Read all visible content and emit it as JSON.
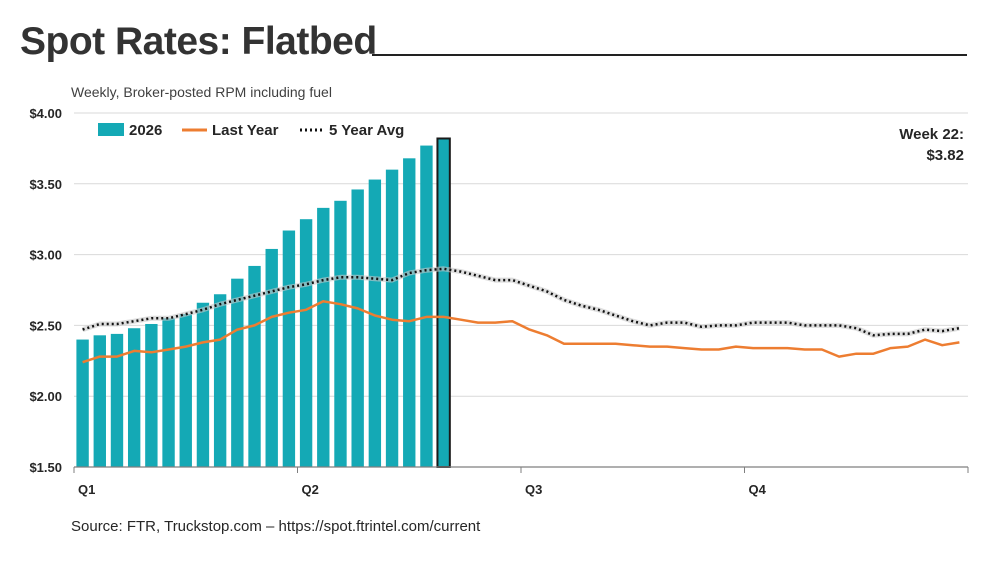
{
  "header": {
    "title": "Spot Rates: Flatbed",
    "subtitle": "Weekly, Broker-posted RPM including fuel"
  },
  "callout": {
    "line1": "Week 22:",
    "line2": "$3.82"
  },
  "footer": {
    "source": "Source: FTR, Truckstop.com – https://spot.ftrintel.com/current"
  },
  "colors": {
    "bars": "#14A9B5",
    "last_year": "#ED7D31",
    "avg": "#111111",
    "grid": "#D9D9D9"
  },
  "chart_data": {
    "type": "bar",
    "title": "Spot Rates: Flatbed",
    "subtitle": "Weekly, Broker-posted RPM including fuel",
    "ylim": [
      1.5,
      4.0
    ],
    "y_ticks": [
      "$1.50",
      "$2.00",
      "$2.50",
      "$3.00",
      "$3.50",
      "$4.00"
    ],
    "y_tick_values": [
      1.5,
      2.0,
      2.5,
      3.0,
      3.5,
      4.0
    ],
    "x_ticks": [
      "Q1",
      "Q2",
      "Q3",
      "Q4"
    ],
    "weeks_total": 52,
    "grid": "horizontal",
    "legend_position": "top-left",
    "highlight_week": 22,
    "series": [
      {
        "name": "2026",
        "type": "bar",
        "values": [
          2.4,
          2.43,
          2.44,
          2.48,
          2.51,
          2.55,
          2.58,
          2.66,
          2.72,
          2.83,
          2.92,
          3.04,
          3.17,
          3.25,
          3.33,
          3.38,
          3.46,
          3.53,
          3.6,
          3.68,
          3.77,
          3.82
        ]
      },
      {
        "name": "Last Year",
        "type": "line",
        "values": [
          2.24,
          2.28,
          2.28,
          2.32,
          2.31,
          2.33,
          2.35,
          2.38,
          2.4,
          2.47,
          2.5,
          2.56,
          2.59,
          2.61,
          2.67,
          2.65,
          2.62,
          2.57,
          2.54,
          2.53,
          2.56,
          2.56,
          2.54,
          2.52,
          2.52,
          2.53,
          2.47,
          2.43,
          2.37,
          2.37,
          2.37,
          2.37,
          2.36,
          2.35,
          2.35,
          2.34,
          2.33,
          2.33,
          2.35,
          2.34,
          2.34,
          2.34,
          2.33,
          2.33,
          2.28,
          2.3,
          2.3,
          2.34,
          2.35,
          2.4,
          2.36,
          2.38
        ]
      },
      {
        "name": "5 Year Avg",
        "type": "line",
        "values": [
          2.47,
          2.51,
          2.51,
          2.53,
          2.55,
          2.55,
          2.58,
          2.61,
          2.65,
          2.68,
          2.71,
          2.74,
          2.77,
          2.79,
          2.82,
          2.84,
          2.84,
          2.83,
          2.82,
          2.87,
          2.89,
          2.9,
          2.88,
          2.85,
          2.82,
          2.82,
          2.78,
          2.74,
          2.68,
          2.64,
          2.61,
          2.57,
          2.53,
          2.5,
          2.52,
          2.52,
          2.49,
          2.5,
          2.5,
          2.52,
          2.52,
          2.52,
          2.5,
          2.5,
          2.5,
          2.48,
          2.43,
          2.44,
          2.44,
          2.47,
          2.46,
          2.48
        ]
      }
    ]
  }
}
